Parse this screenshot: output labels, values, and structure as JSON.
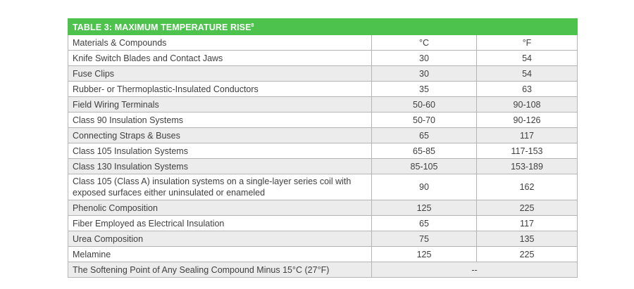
{
  "table": {
    "title": "TABLE 3: MAXIMUM TEMPERATURE RISE",
    "title_sup": "8",
    "header": {
      "material": "Materials & Compounds",
      "celsius": "°C",
      "fahrenheit": "°F"
    },
    "rows": [
      {
        "material": "Knife Switch Blades and Contact Jaws",
        "c": "30",
        "f": "54"
      },
      {
        "material": "Fuse Clips",
        "c": "30",
        "f": "54"
      },
      {
        "material": "Rubber- or Thermoplastic-Insulated Conductors",
        "c": "35",
        "f": "63"
      },
      {
        "material": "Field Wiring Terminals",
        "c": "50-60",
        "f": "90-108"
      },
      {
        "material": "Class 90 Insulation Systems",
        "c": "50-70",
        "f": "90-126"
      },
      {
        "material": "Connecting Straps & Buses",
        "c": "65",
        "f": "117"
      },
      {
        "material": "Class 105 Insulation Systems",
        "c": "65-85",
        "f": "117-153"
      },
      {
        "material": "Class 130 Insulation Systems",
        "c": "85-105",
        "f": "153-189"
      },
      {
        "material": "Class 105 (Class A) insulation systems on a single-layer series coil with exposed surfaces either uninsulated or enameled",
        "c": "90",
        "f": "162"
      },
      {
        "material": "Phenolic Composition",
        "c": "125",
        "f": "225"
      },
      {
        "material": "Fiber Employed as Electrical Insulation",
        "c": "65",
        "f": "117"
      },
      {
        "material": "Urea Composition",
        "c": "75",
        "f": "135"
      },
      {
        "material": "Melamine",
        "c": "125",
        "f": "225"
      }
    ],
    "last_row": {
      "material": "The Softening Point of Any Sealing Compound Minus 15°C (27°F)",
      "value": "--"
    }
  },
  "colors": {
    "title_background": "#4dc24d",
    "title_text": "#ffffff",
    "shaded_row": "#ececec",
    "border": "#b4b4b4",
    "text": "#404040"
  }
}
